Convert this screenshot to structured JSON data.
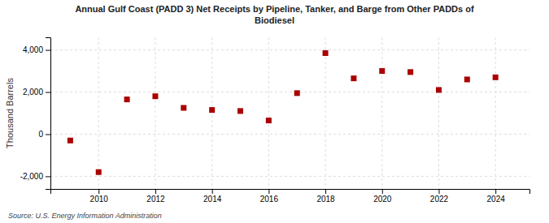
{
  "chart_data": {
    "type": "scatter",
    "title": "Annual Gulf Coast (PADD 3) Net Receipts by Pipeline, Tanker, and Barge from Other PADDs of\nBiodiesel",
    "ylabel": "Thousand Barrels",
    "source": "Source: U.S. Energy Information Administration",
    "x": [
      2009,
      2010,
      2011,
      2012,
      2013,
      2014,
      2015,
      2016,
      2017,
      2018,
      2019,
      2020,
      2021,
      2022,
      2023,
      2024
    ],
    "values": [
      -300,
      -1800,
      1650,
      1800,
      1250,
      1150,
      1100,
      650,
      1950,
      3850,
      2650,
      3000,
      2950,
      2100,
      2600,
      2700
    ],
    "color": "#aa0000",
    "marker": "square",
    "xlim": [
      2008.3,
      2025.2
    ],
    "xticks": [
      2010,
      2012,
      2014,
      2016,
      2018,
      2020,
      2022,
      2024
    ],
    "ylim": [
      -2600,
      4600
    ],
    "yticks": [
      {
        "value": -2000,
        "label": "-2,000"
      },
      0,
      {
        "value": 2000,
        "label": "2,000"
      },
      {
        "value": 4000,
        "label": "4,000"
      }
    ],
    "grid": true
  }
}
